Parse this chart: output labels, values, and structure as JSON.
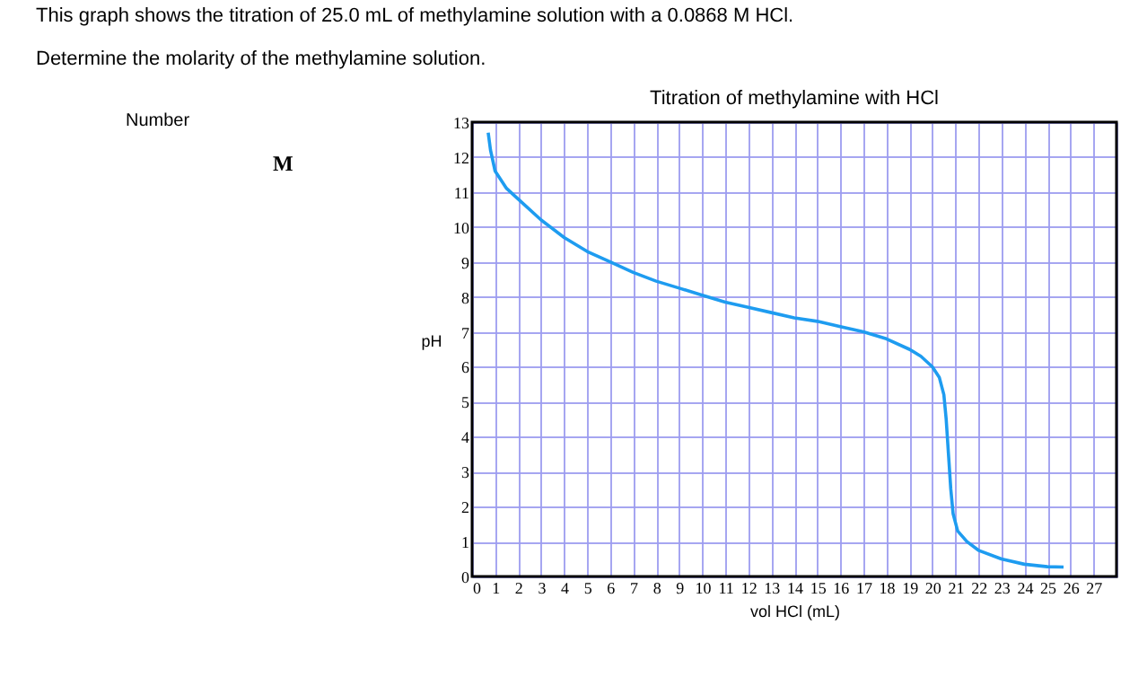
{
  "chart_data": {
    "type": "line",
    "title": "Titration of methylamine with HCl",
    "xlabel": "vol HCl (mL)",
    "ylabel": "pH",
    "annotations": [
      "This graph shows the titration of 25.0 mL of methylamine solution with a 0.0868 M HCl.",
      "Determine the molarity of the methylamine solution.",
      "Number",
      "M"
    ],
    "x": [
      0.7,
      0.8,
      1,
      1.5,
      2,
      3,
      4,
      5,
      6,
      7,
      8,
      9,
      10,
      11,
      12,
      13,
      14,
      15,
      16,
      17,
      18,
      19,
      19.5,
      20,
      20.3,
      20.5,
      20.6,
      20.7,
      20.8,
      20.9,
      21.1,
      21.5,
      22,
      23,
      24,
      25,
      25.7
    ],
    "series": [
      {
        "color": "#1e9cf0",
        "values": [
          12.7,
          12.2,
          11.6,
          11.1,
          10.8,
          10.2,
          9.7,
          9.3,
          9.0,
          8.7,
          8.45,
          8.25,
          8.05,
          7.85,
          7.7,
          7.55,
          7.4,
          7.3,
          7.15,
          7.0,
          6.8,
          6.5,
          6.3,
          6.0,
          5.7,
          5.2,
          4.5,
          3.5,
          2.5,
          1.8,
          1.3,
          1.0,
          0.75,
          0.5,
          0.35,
          0.28,
          0.27
        ]
      }
    ],
    "xlim": [
      0,
      28
    ],
    "xticks": [
      0,
      1,
      2,
      3,
      4,
      5,
      6,
      7,
      8,
      9,
      10,
      11,
      12,
      13,
      14,
      15,
      16,
      17,
      18,
      19,
      20,
      21,
      22,
      23,
      24,
      25,
      26,
      27,
      {
        "value": 28,
        "label": null
      }
    ],
    "ylim": [
      0,
      13
    ],
    "yticks": [
      0,
      1,
      2,
      3,
      4,
      5,
      6,
      7,
      8,
      9,
      10,
      11,
      12,
      13
    ],
    "grid": true,
    "marker": "none",
    "line_style": "solid"
  }
}
